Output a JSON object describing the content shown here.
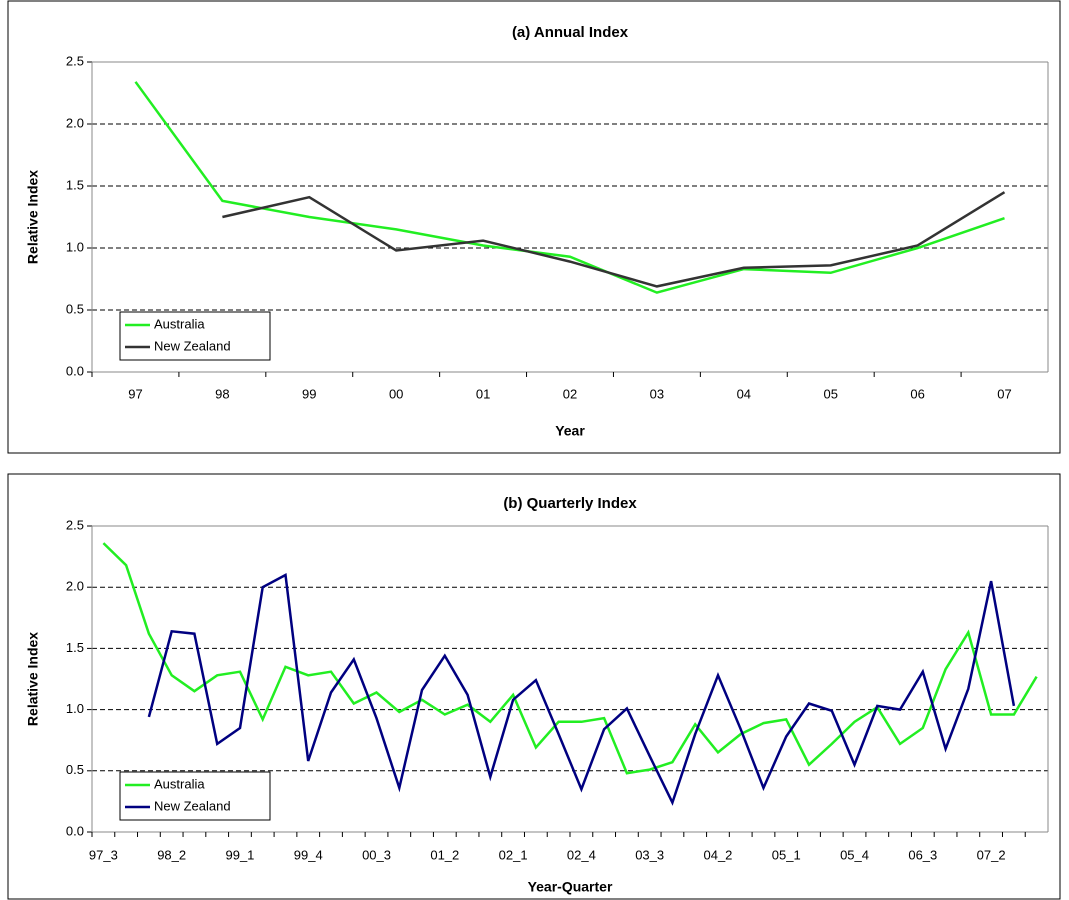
{
  "chart_data": [
    {
      "type": "line",
      "title": "(a) Annual Index",
      "x_label": "Year",
      "y_label": "Relative Index",
      "categories": [
        "97",
        "98",
        "99",
        "00",
        "01",
        "02",
        "03",
        "04",
        "05",
        "06",
        "07"
      ],
      "series": [
        {
          "name": "Australia",
          "color": "#22ee22",
          "values": [
            2.34,
            1.38,
            1.25,
            1.15,
            1.02,
            0.93,
            0.64,
            0.83,
            0.8,
            1.0,
            1.24
          ]
        },
        {
          "name": "New Zealand",
          "color": "#333333",
          "values": [
            null,
            1.25,
            1.41,
            0.98,
            1.06,
            0.89,
            0.69,
            0.84,
            0.86,
            1.02,
            1.45
          ]
        }
      ],
      "ylim": [
        0,
        2.5
      ],
      "yticks": [
        {
          "value": 0,
          "label": "0.0"
        },
        0.5,
        {
          "value": 1,
          "label": "1.0"
        },
        1.5,
        {
          "value": 2,
          "label": "2.0"
        },
        2.5
      ],
      "grid": true,
      "legend": "lower left"
    },
    {
      "type": "line",
      "title": "(b) Quarterly Index",
      "x_label": "Year-Quarter",
      "y_label": "Relative Index",
      "categories": [
        "97_3",
        null,
        null,
        "98_2",
        null,
        null,
        "99_1",
        null,
        null,
        "99_4",
        null,
        null,
        "00_3",
        null,
        null,
        "01_2",
        null,
        null,
        "02_1",
        null,
        null,
        "02_4",
        null,
        null,
        "03_3",
        null,
        null,
        "04_2",
        null,
        null,
        "05_1",
        null,
        null,
        "05_4",
        null,
        null,
        "06_3",
        null,
        null,
        "07_2",
        null,
        null
      ],
      "series": [
        {
          "name": "Australia",
          "color": "#22ee22",
          "values": [
            2.36,
            2.18,
            1.62,
            1.28,
            1.15,
            1.28,
            1.31,
            0.92,
            1.35,
            1.28,
            1.31,
            1.05,
            1.14,
            0.98,
            1.08,
            0.96,
            1.04,
            0.9,
            1.12,
            0.69,
            0.9,
            0.9,
            0.93,
            0.48,
            0.51,
            0.57,
            0.88,
            0.65,
            0.8,
            0.89,
            0.92,
            0.55,
            0.72,
            0.9,
            1.02,
            0.72,
            0.85,
            1.33,
            1.63,
            0.96,
            0.96,
            1.27
          ]
        },
        {
          "name": "New Zealand",
          "color": "#000080",
          "values": [
            null,
            null,
            0.94,
            1.64,
            1.62,
            0.72,
            0.85,
            2.0,
            2.1,
            0.58,
            1.14,
            1.41,
            0.93,
            0.36,
            1.16,
            1.44,
            1.12,
            0.45,
            1.08,
            1.24,
            0.8,
            0.35,
            0.84,
            1.01,
            0.62,
            0.24,
            0.8,
            1.28,
            0.84,
            0.36,
            0.78,
            1.05,
            0.99,
            0.55,
            1.03,
            1.0,
            1.31,
            0.68,
            1.17,
            2.05,
            1.03,
            null
          ]
        }
      ],
      "ylim": [
        0,
        2.5
      ],
      "yticks": [
        {
          "value": 0,
          "label": "0.0"
        },
        0.5,
        {
          "value": 1,
          "label": "1.0"
        },
        1.5,
        {
          "value": 2,
          "label": "2.0"
        },
        2.5
      ],
      "grid": true,
      "legend": "lower left"
    }
  ]
}
